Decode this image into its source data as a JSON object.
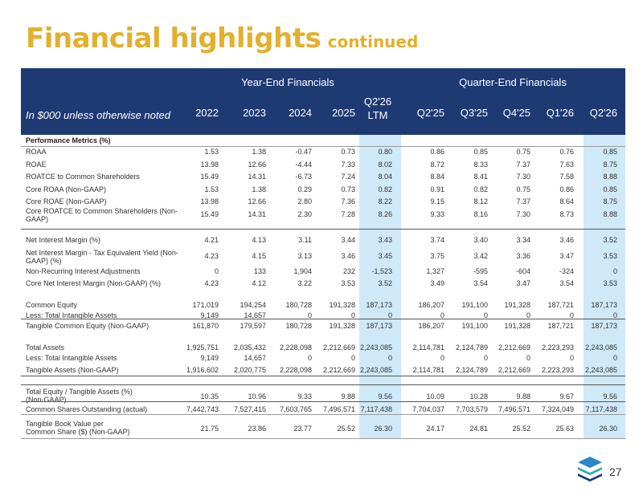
{
  "title": {
    "main": "Financial highlights",
    "sub": "continued"
  },
  "header": {
    "group_year": "Year-End Financials",
    "group_quarter": "Quarter-End Financials",
    "note": "In $000 unless otherwise noted",
    "cols": [
      "2022",
      "2023",
      "2024",
      "2025",
      "Q2'26",
      "Q2'25",
      "Q3'25",
      "Q4'25",
      "Q1'26",
      "Q2'26"
    ],
    "ltm_suffix": "LTM"
  },
  "section_title": "Performance Metrics (%)",
  "rows": [
    {
      "label": "ROAA",
      "values": [
        "1.53",
        "1.38",
        "-0.47",
        "0.73",
        "0.80",
        "0.86",
        "0.85",
        "0.75",
        "0.76",
        "0.85"
      ]
    },
    {
      "label": "ROAE",
      "values": [
        "13.98",
        "12.66",
        "-4.44",
        "7.33",
        "8.02",
        "8.72",
        "8.33",
        "7.37",
        "7.63",
        "8.75"
      ]
    },
    {
      "label": "ROATCE to Common Shareholders",
      "values": [
        "15.49",
        "14.31",
        "-6.73",
        "7.24",
        "8.04",
        "8.84",
        "8.41",
        "7.30",
        "7.58",
        "8.88"
      ]
    },
    {
      "label": "Core ROAA (Non-GAAP)",
      "values": [
        "1.53",
        "1.38",
        "0.29",
        "0.73",
        "0.82",
        "0.91",
        "0.82",
        "0.75",
        "0.86",
        "0.85"
      ]
    },
    {
      "label": "Core ROAE (Non-GAAP)",
      "values": [
        "13.98",
        "12.66",
        "2.80",
        "7.36",
        "8.22",
        "9.15",
        "8.12",
        "7.37",
        "8.64",
        "8.75"
      ]
    },
    {
      "label": "Core ROATCE to Common Shareholders (Non-GAAP)",
      "label_lines": [
        "Core ROATCE to Common Shareholders (Non-",
        "GAAP)"
      ],
      "values": [
        "15.49",
        "14.31",
        "2.30",
        "7.28",
        "8.26",
        "9.33",
        "8.16",
        "7.30",
        "8.73",
        "8.88"
      ]
    },
    {
      "label": "Net Interest Margin (%)",
      "values": [
        "4.21",
        "4.13",
        "3.11",
        "3.44",
        "3.43",
        "3.74",
        "3.40",
        "3.34",
        "3.46",
        "3.52"
      ]
    },
    {
      "label": "Net Interest Margin - Tax Equivalent Yield (Non-GAAP) (%)",
      "label_lines": [
        "Net Interest Margin - Tax Equivalent Yield (Non-",
        "GAAP) (%)"
      ],
      "values": [
        "4.23",
        "4.15",
        "3.13",
        "3.46",
        "3.45",
        "3.75",
        "3.42",
        "3.36",
        "3.47",
        "3.53"
      ]
    },
    {
      "label": "Non-Recurring Interest Adjustments",
      "values": [
        "0",
        "133",
        "1,904",
        "232",
        "-1,523",
        "1,327",
        "-595",
        "-604",
        "-324",
        "0"
      ]
    },
    {
      "label": "Core Net Interest Margin (Non-GAAP) (%)",
      "values": [
        "4.23",
        "4.12",
        "3.22",
        "3.53",
        "3.52",
        "3.49",
        "3.54",
        "3.47",
        "3.54",
        "3.53"
      ]
    },
    {
      "label": "Common Equity",
      "values": [
        "171,019",
        "194,254",
        "180,728",
        "191,328",
        "187,173",
        "186,207",
        "191,100",
        "191,328",
        "187,721",
        "187,173"
      ]
    },
    {
      "label": "Less: Total Intangible Assets",
      "values": [
        "9,149",
        "14,657",
        "0",
        "0",
        "0",
        "0",
        "0",
        "0",
        "0",
        "0"
      ]
    },
    {
      "label": "Tangible Common Equity (Non-GAAP)",
      "values": [
        "161,870",
        "179,597",
        "180,728",
        "191,328",
        "187,173",
        "186,207",
        "191,100",
        "191,328",
        "187,721",
        "187,173"
      ]
    },
    {
      "label": "Total Assets",
      "values": [
        "1,925,751",
        "2,035,432",
        "2,228,098",
        "2,212,669",
        "2,243,085",
        "2,114,781",
        "2,124,789",
        "2,212,669",
        "2,223,293",
        "2,243,085"
      ]
    },
    {
      "label": "Less: Total Intangible Assets",
      "values": [
        "9,149",
        "14,657",
        "0",
        "0",
        "0",
        "0",
        "0",
        "0",
        "0",
        "0"
      ]
    },
    {
      "label": "Tangible Assets (Non-GAAP)",
      "values": [
        "1,916,602",
        "2,020,775",
        "2,228,098",
        "2,212,669",
        "2,243,085",
        "2,114,781",
        "2,124,789",
        "2,212,669",
        "2,223,293",
        "2,243,085"
      ]
    },
    {
      "label": "Total Equity / Tangible Assets (%) (Non-GAAP)",
      "label_lines": [
        "Total Equity / Tangible Assets  (%)",
        "(Non-GAAP)"
      ],
      "values": [
        "10.35",
        "10.96",
        "9.33",
        "9.88",
        "9.56",
        "10.09",
        "10.28",
        "9.88",
        "9.67",
        "9.56"
      ]
    },
    {
      "label": "Common Shares Outstanding (actual)",
      "values": [
        "7,442,743",
        "7,527,415",
        "7,603,765",
        "7,496,571",
        "7,117,438",
        "7,704,037",
        "7,703,579",
        "7,496,571",
        "7,324,049",
        "7,117,438"
      ]
    },
    {
      "label": "Tangible Book Value per Common Share ($) (Non-GAAP)",
      "label_lines": [
        "Tangible Book Value per",
        "Common Share ($) (Non-GAAP)"
      ],
      "values": [
        "21.75",
        "23.86",
        "23.77",
        "25.52",
        "26.30",
        "24.17",
        "24.81",
        "25.52",
        "25.63",
        "26.30"
      ]
    }
  ],
  "page_number": "27",
  "colors": {
    "title": "#e3b02e",
    "header_bg": "#1e3a73",
    "highlight": "#cfe9f8"
  }
}
